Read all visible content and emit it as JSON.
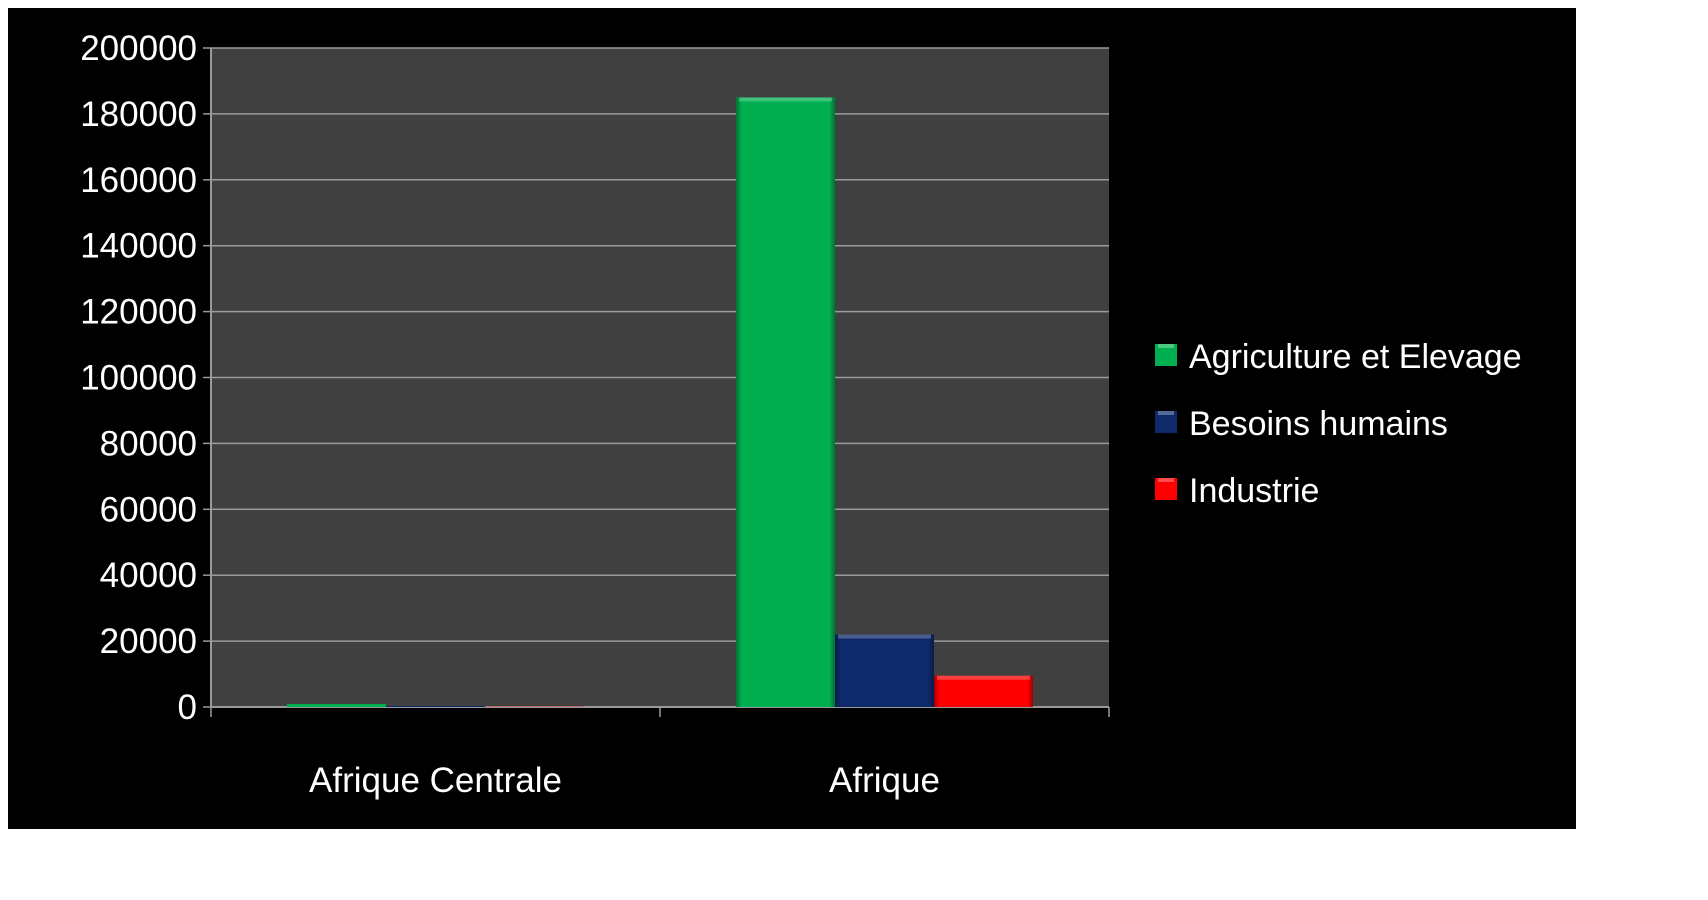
{
  "chart_data": {
    "type": "bar",
    "title": "",
    "xlabel": "",
    "ylabel": "",
    "categories": [
      "Afrique Centrale",
      "Afrique"
    ],
    "series": [
      {
        "name": "Agriculture et Elevage",
        "values": [
          900,
          185000
        ],
        "color": "#00b050"
      },
      {
        "name": "Besoins humains",
        "values": [
          300,
          22000
        ],
        "color": "#0e2a6b"
      },
      {
        "name": "Industrie",
        "values": [
          100,
          9500
        ],
        "color": "#ff0000"
      }
    ],
    "ylim": [
      0,
      200000
    ],
    "yticks": [
      "0",
      "20000",
      "40000",
      "60000",
      "80000",
      "100000",
      "120000",
      "140000",
      "160000",
      "180000",
      "200000"
    ],
    "grid": true,
    "legend_position": "right",
    "plot_background": "#404040",
    "background": "#000000",
    "gridline_color": "#9a9a9a",
    "text_color": "#ffffff"
  }
}
